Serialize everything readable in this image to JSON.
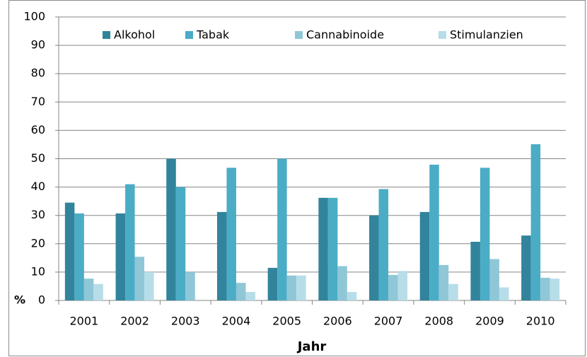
{
  "chart_data": {
    "type": "bar",
    "x_label": "Jahr",
    "y_label": "%",
    "categories": [
      "2001",
      "2002",
      "2003",
      "2004",
      "2005",
      "2006",
      "2007",
      "2008",
      "2009",
      "2010"
    ],
    "series": [
      {
        "name": "Alkohol",
        "color": "#31849b",
        "values": [
          34.5,
          30.7,
          50,
          31.2,
          11.5,
          36.2,
          30,
          31.2,
          20.7,
          22.9
        ]
      },
      {
        "name": "Tabak",
        "color": "#4bacc6",
        "values": [
          30.7,
          41,
          40,
          46.8,
          50,
          36.2,
          39.3,
          47.9,
          46.8,
          55.1
        ]
      },
      {
        "name": "Cannabinoide",
        "color": "#8fc7d7",
        "values": [
          7.7,
          15.4,
          10,
          6.2,
          8.8,
          12.1,
          9,
          12.5,
          14.6,
          8
        ]
      },
      {
        "name": "Stimulanzien",
        "color": "#b7dde8",
        "values": [
          5.8,
          10,
          null,
          3,
          8.8,
          3,
          10.4,
          5.8,
          4.6,
          7.7
        ]
      }
    ],
    "ylim": [
      0,
      100
    ],
    "yticks": [
      0,
      10,
      20,
      30,
      40,
      50,
      60,
      70,
      80,
      90,
      100
    ],
    "grid": true,
    "legend": "top"
  }
}
